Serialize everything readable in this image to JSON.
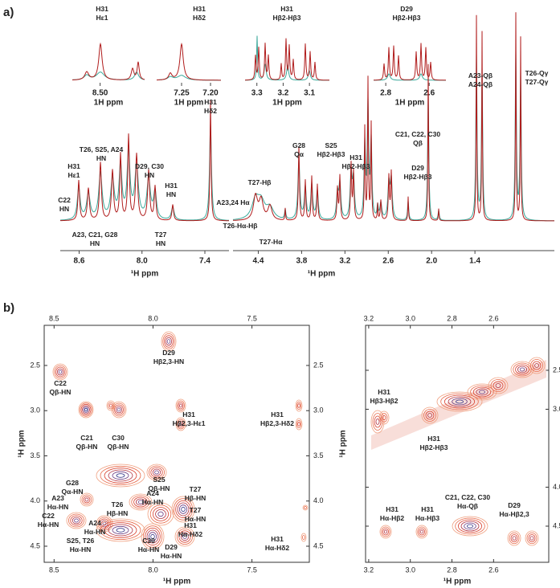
{
  "panel_a": {
    "label": "a)",
    "inset_xlabel": "1H ppm",
    "insets": [
      {
        "lines": [
          "H31",
          "Hε1"
        ],
        "color": "#eea020",
        "xlim": [
          8.55,
          8.42
        ],
        "xticks": [
          {
            "value": 8.5,
            "label": "8.50"
          }
        ]
      },
      {
        "lines": [
          "H31",
          "Hδ2"
        ],
        "color": "#eea020",
        "xlim": [
          7.293,
          7.182
        ],
        "xticks": [
          7.25,
          {
            "value": 7.2,
            "label": "7.20"
          }
        ]
      },
      {
        "lines": [
          "H31",
          "Hβ2-Hβ3"
        ],
        "color": "#eea020",
        "xlim": [
          3.345,
          3.024
        ],
        "xticks": [
          3.3,
          3.2,
          3.1
        ]
      },
      {
        "lines": [
          "D29",
          "Hβ2-Hβ3"
        ],
        "color": "#eea020",
        "xlim": [
          2.856,
          2.523
        ],
        "xticks": [
          2.8,
          2.6
        ]
      }
    ],
    "xlabel": "¹H ppm",
    "segments": [
      {
        "xlim": [
          8.78,
          7.17
        ],
        "xticks": [
          8.6,
          {
            "value": 8,
            "label": "8.0"
          },
          7.4
        ]
      },
      {
        "xlim": [
          4.75,
          0.3
        ],
        "xticks": [
          4.4,
          3.8,
          3.2,
          2.6,
          {
            "value": 2,
            "label": "2.0"
          },
          1.4
        ]
      }
    ],
    "annotations": [
      {
        "lines": [
          "H31",
          "Hε1"
        ],
        "color": "#eea020"
      },
      {
        "lines": [
          "T26, S25, A24",
          "HN"
        ],
        "color": "#222222"
      },
      {
        "lines": [
          "D29, C30",
          "HN"
        ],
        "color": "#222222"
      },
      {
        "lines": [
          "H31",
          "HN"
        ],
        "color": "#222222"
      },
      {
        "lines": [
          "C22",
          "HN"
        ],
        "color": "#222222"
      },
      {
        "lines": [
          "A23, C21, G28",
          "HN"
        ],
        "color": "#222222"
      },
      {
        "lines": [
          "T27",
          "HN"
        ],
        "color": "#222222"
      },
      {
        "lines": [
          "H31",
          "Hδ2"
        ],
        "color": "#eea020"
      },
      {
        "lines": [
          "G28",
          "Qα"
        ],
        "color": "#222222"
      },
      {
        "lines": [
          "S25",
          "Hβ2-Hβ3"
        ],
        "color": "#222222"
      },
      {
        "lines": [
          "T27-Hβ"
        ],
        "color": "#222222"
      },
      {
        "lines": [
          "A23,24 Hα"
        ],
        "color": "#222222"
      },
      {
        "lines": [
          "T26-Hα-Hβ"
        ],
        "color": "#222222"
      },
      {
        "lines": [
          "T27-Hα"
        ],
        "color": "#222222"
      },
      {
        "lines": [
          "H31",
          "Hβ2-Hβ3"
        ],
        "color": "#eea020"
      },
      {
        "lines": [
          "C21, C22, C30",
          "Qβ"
        ],
        "color": "#222222"
      },
      {
        "lines": [
          "D29",
          "Hβ2-Hβ3"
        ],
        "color": "#eea020"
      },
      {
        "lines": [
          "A23-Qβ",
          "A24-Qβ"
        ],
        "color": "#222222"
      },
      {
        "lines": [
          "T26-Qγ",
          "T27-Qγ"
        ],
        "color": "#222222"
      }
    ]
  },
  "panel_b": {
    "label": "b)",
    "xlabel": "¹H ppm",
    "ylabel": "¹H ppm",
    "left": {
      "xlim": [
        8.55,
        7.21
      ],
      "xticks": [
        8.5,
        {
          "value": 8,
          "label": "8.0"
        },
        7.5
      ],
      "ylim": [
        2.056,
        4.678
      ],
      "yticks": [
        2.5,
        {
          "value": 3,
          "label": "3.0"
        },
        3.5,
        {
          "value": 4,
          "label": "4.0"
        },
        4.5
      ],
      "annotations": [
        {
          "lines": [
            "C22",
            "Qβ-HN"
          ],
          "color": "#222222"
        },
        {
          "lines": [
            "D29",
            "Hβ2,3-HN"
          ],
          "color": "#222222"
        },
        {
          "lines": [
            "C21",
            "Qβ-HN"
          ],
          "color": "#222222"
        },
        {
          "lines": [
            "C30",
            "Qβ-HN"
          ],
          "color": "#222222"
        },
        {
          "lines": [
            "H31",
            "Hβ2,3-Hε1"
          ],
          "color": "#eea020"
        },
        {
          "lines": [
            "H31",
            "Hβ2,3-Hδ2"
          ],
          "color": "#eea020"
        },
        {
          "lines": [
            "G28",
            "Qα-HN"
          ],
          "color": "#222222"
        },
        {
          "lines": [
            "S25",
            "Qβ-HN"
          ],
          "color": "#222222"
        },
        {
          "lines": [
            "A23",
            "Hα-HN"
          ],
          "color": "#222222"
        },
        {
          "lines": [
            "T26",
            "Hβ-HN"
          ],
          "color": "#222222"
        },
        {
          "lines": [
            "A24",
            "Hα-HN"
          ],
          "color": "#222222"
        },
        {
          "lines": [
            "T27",
            "Hβ-HN"
          ],
          "color": "#222222"
        },
        {
          "lines": [
            "T27",
            "Hα-HN"
          ],
          "color": "#222222"
        },
        {
          "lines": [
            "C22",
            "Hα-HN"
          ],
          "color": "#222222"
        },
        {
          "lines": [
            "A24",
            "Hα-HN"
          ],
          "color": "#222222"
        },
        {
          "lines": [
            "H31",
            "Hα-Hδ2"
          ],
          "color": "#eea020"
        },
        {
          "lines": [
            "S25, T26",
            "Hα-HN"
          ],
          "color": "#222222"
        },
        {
          "lines": [
            "C30",
            "Hα-HN"
          ],
          "color": "#222222"
        },
        {
          "lines": [
            "H31",
            "Hα-Hδ2"
          ],
          "color": "#eea020"
        },
        {
          "lines": [
            "D29",
            "Hα-HN"
          ],
          "color": "#222222"
        }
      ]
    },
    "right": {
      "xlim": [
        3.215,
        2.335
      ],
      "xticks": [
        3.2,
        {
          "value": 3,
          "label": "3.0"
        },
        2.8,
        2.6
      ],
      "ylim": [
        1.923,
        4.964
      ],
      "yticks": [
        2.5,
        {
          "value": 3,
          "label": "3.0"
        },
        {
          "value": 4,
          "label": "4.0"
        },
        4.5
      ],
      "annotations": [
        {
          "lines": [
            "H31",
            "Hβ3-Hβ2"
          ],
          "color": "#eea020"
        },
        {
          "lines": [
            "H31",
            "Hβ2-Hβ3"
          ],
          "color": "#eea020"
        },
        {
          "lines": [
            "H31",
            "Hα-Hβ2"
          ],
          "color": "#eea020"
        },
        {
          "lines": [
            "H31",
            "Hα-Hβ3"
          ],
          "color": "#eea020"
        },
        {
          "lines": [
            "C21, C22, C30",
            "Hα-Qβ"
          ],
          "color": "#222222"
        },
        {
          "lines": [
            "D29",
            "Hα-Hβ2,3"
          ],
          "color": "#eea020"
        }
      ]
    }
  }
}
